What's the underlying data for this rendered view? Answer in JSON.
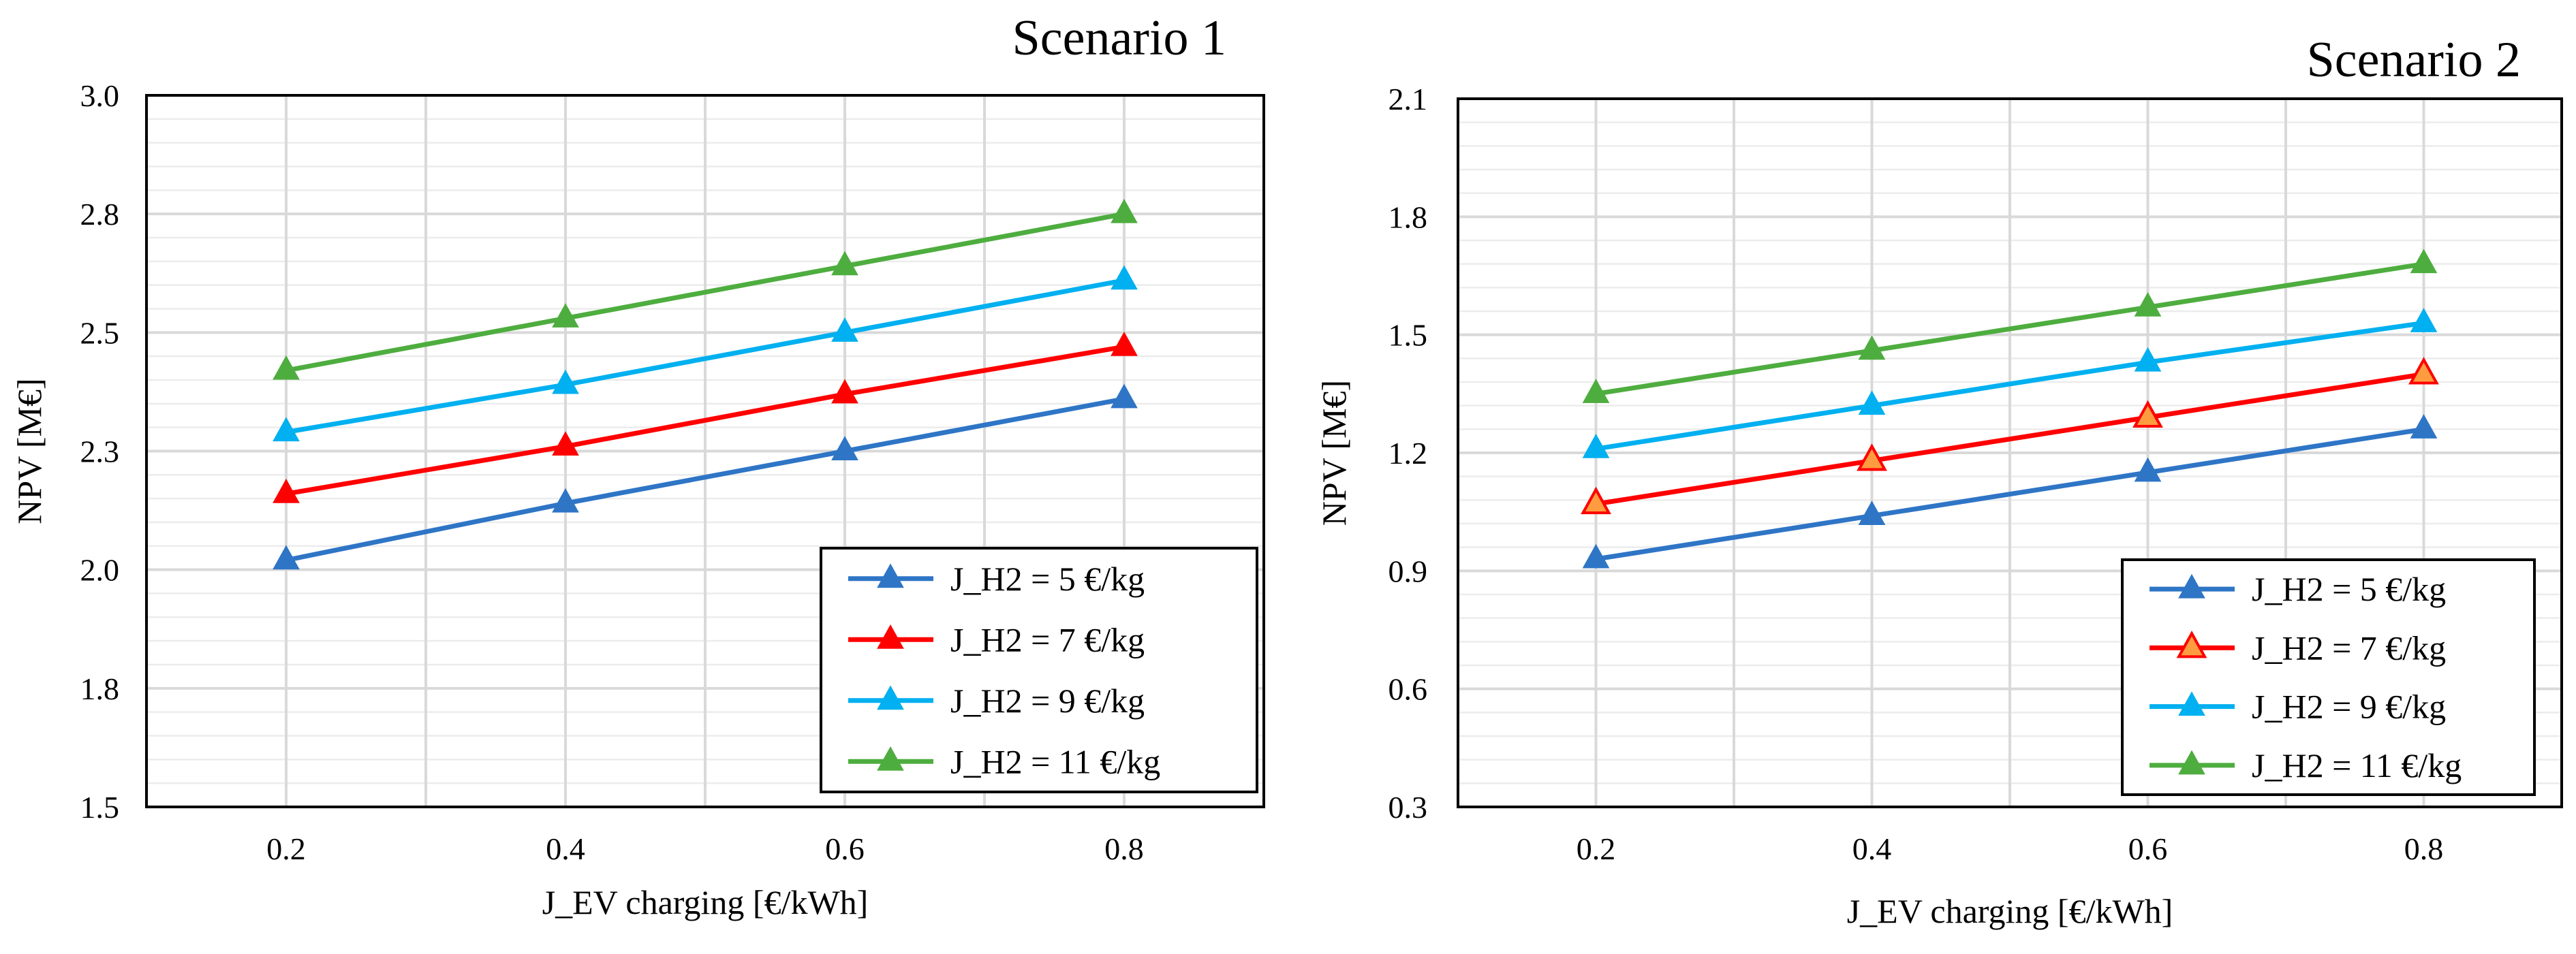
{
  "chart_data": [
    {
      "type": "line",
      "title": "Scenario 1",
      "xlabel": "J_EV charging [€/kWh]",
      "ylabel": "NPV [M€]",
      "xlim": [
        0.1,
        0.9
      ],
      "ylim": [
        1.5,
        3.0
      ],
      "x_ticks": [
        0.2,
        0.4,
        0.6,
        0.8
      ],
      "x_tick_labels": [
        "0.2",
        "0.4",
        "0.6",
        "0.8"
      ],
      "y_ticks": [
        1.5,
        1.75,
        2.0,
        2.25,
        2.5,
        2.75,
        3.0
      ],
      "y_tick_labels": [
        "1.5",
        "1.8",
        "2.0",
        "2.3",
        "2.5",
        "2.8",
        "3.0"
      ],
      "x": [
        0.2,
        0.4,
        0.6,
        0.8
      ],
      "legend_position": "bottom-right",
      "series": [
        {
          "name": "J_H2 = 5 €/kg",
          "values": [
            2.02,
            2.14,
            2.25,
            2.36
          ],
          "color": "#2e75c6"
        },
        {
          "name": "J_H2 = 7 €/kg",
          "values": [
            2.16,
            2.26,
            2.37,
            2.47
          ],
          "color": "#ff0000"
        },
        {
          "name": "J_H2 = 9 €/kg",
          "values": [
            2.29,
            2.39,
            2.5,
            2.61
          ],
          "color": "#00b0f0"
        },
        {
          "name": "J_H2 = 11 €/kg",
          "values": [
            2.42,
            2.53,
            2.64,
            2.75
          ],
          "color": "#4ead3f"
        }
      ]
    },
    {
      "type": "line",
      "title": "Scenario 2",
      "xlabel": "J_EV charging [€/kWh]",
      "ylabel": "NPV [M€]",
      "xlim": [
        0.1,
        0.9
      ],
      "ylim": [
        0.3,
        2.1
      ],
      "x_ticks": [
        0.2,
        0.4,
        0.6,
        0.8
      ],
      "x_tick_labels": [
        "0.2",
        "0.4",
        "0.6",
        "0.8"
      ],
      "y_ticks": [
        0.3,
        0.6,
        0.9,
        1.2,
        1.5,
        1.8,
        2.1
      ],
      "y_tick_labels": [
        "0.3",
        "0.6",
        "0.9",
        "1.2",
        "1.5",
        "1.8",
        "2.1"
      ],
      "x": [
        0.2,
        0.4,
        0.6,
        0.8
      ],
      "legend_position": "bottom-right",
      "series": [
        {
          "name": "J_H2 = 5 €/kg",
          "values": [
            0.93,
            1.04,
            1.15,
            1.26
          ],
          "color": "#2e75c6"
        },
        {
          "name": "J_H2 = 7 €/kg",
          "values": [
            1.07,
            1.18,
            1.29,
            1.4
          ],
          "color": "#ff0000",
          "marker_fill": "#ff9c40"
        },
        {
          "name": "J_H2 = 9 €/kg",
          "values": [
            1.21,
            1.32,
            1.43,
            1.53
          ],
          "color": "#00b0f0"
        },
        {
          "name": "J_H2 = 11 €/kg",
          "values": [
            1.35,
            1.46,
            1.57,
            1.68
          ],
          "color": "#4ead3f"
        }
      ]
    }
  ]
}
